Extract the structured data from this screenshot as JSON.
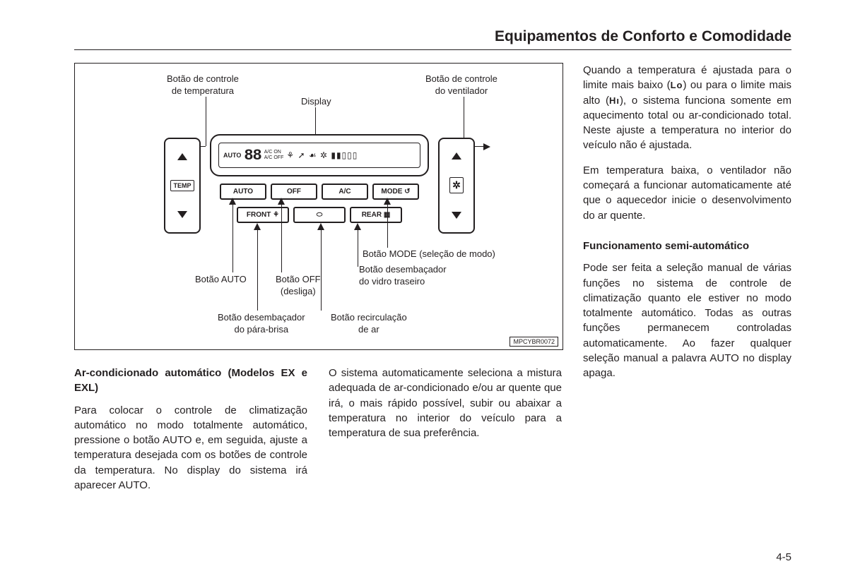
{
  "header": {
    "title": "Equipamentos de Conforto e Comodidade"
  },
  "diagram": {
    "code": "MPCYBR0072",
    "labels": {
      "temp_ctrl": "Botão de controle\nde temperatura",
      "display": "Display",
      "fan_ctrl": "Botão de controle\ndo ventilador",
      "auto_btn": "Botão AUTO",
      "off_btn": "Botão OFF\n(desliga)",
      "mode_btn": "Botão MODE (seleção de modo)",
      "rear_def": "Botão desembaçador\ndo vidro traseiro",
      "front_def": "Botão desembaçador\ndo pára-brisa",
      "recirc": "Botão recirculação\nde ar"
    },
    "display_content": {
      "auto": "AUTO",
      "seg": "88",
      "ac_on": "A/C ON",
      "ac_off": "A/C OFF"
    },
    "buttons": {
      "auto": "AUTO",
      "off": "OFF",
      "ac": "A/C",
      "mode": "MODE",
      "front": "FRONT",
      "rear": "REAR",
      "temp": "TEMP"
    }
  },
  "left_body": {
    "h1": "Ar-condicionado automático (Modelos EX e EXL)",
    "p1": "Para colocar o controle de climatização automático no modo totalmente automático, pressione o botão AUTO e, em seguida, ajuste a temperatura desejada com os botões de controle da temperatura. No display do sistema irá aparecer AUTO.",
    "p2": "O sistema automaticamente seleciona a mistura adequada de ar-condicionado e/ou ar quente que irá, o mais rápido possível, subir ou abaixar a temperatura no interior do veículo para a temperatura de sua preferência."
  },
  "right_body": {
    "p1a": "Quando a temperatura é ajustada para o limite mais baixo (",
    "lo": "Lo",
    "p1b": ") ou para o limite mais alto (",
    "hi": "Hı",
    "p1c": "), o sistema funciona somente em aquecimento total ou ar-condicionado total. Neste ajuste a temperatura no interior do veículo não é ajustada.",
    "p2": "Em temperatura baixa, o ventilador não começará a funcionar automaticamente até que o aquecedor inicie o desenvolvimento do ar quente.",
    "h2": "Funcionamento semi-automático",
    "p3": "Pode ser feita a seleção manual de várias funções no sistema de controle de climatização quanto ele estiver no modo totalmente automático. Todas as outras funções permanecem controladas automaticamente. Ao fazer qualquer seleção manual a palavra AUTO no display apaga."
  },
  "page_number": "4-5"
}
